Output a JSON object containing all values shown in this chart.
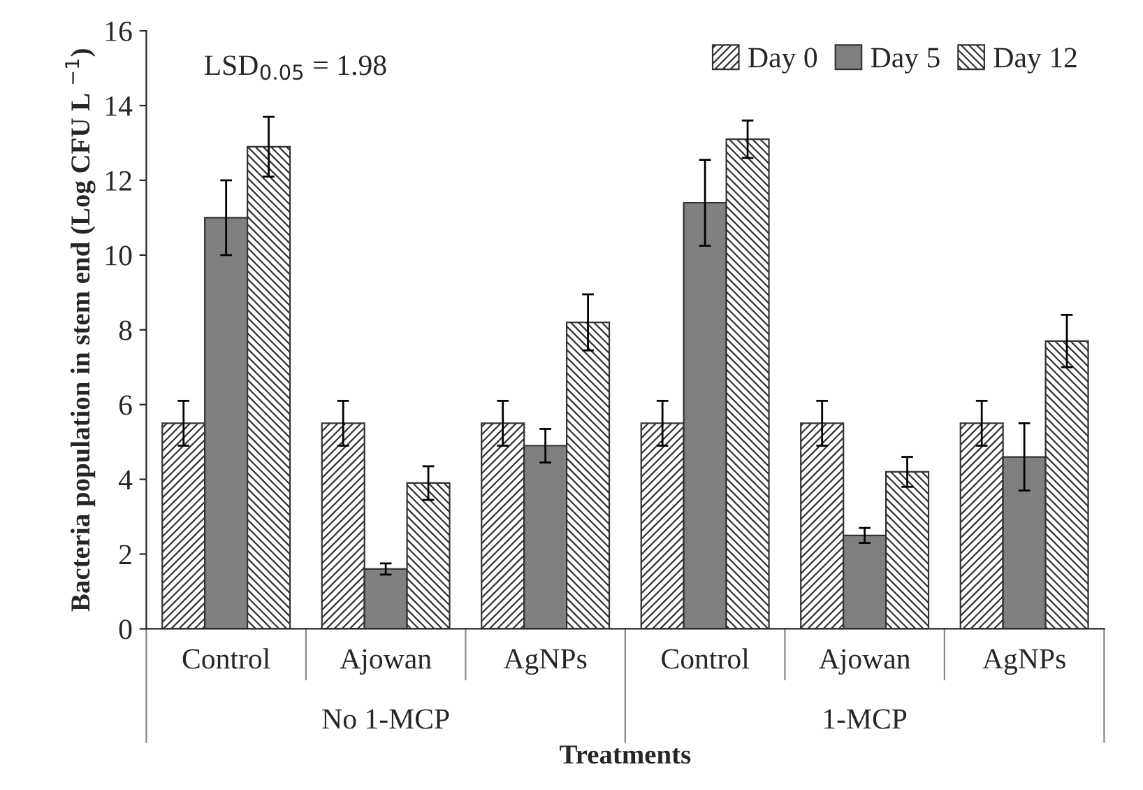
{
  "chart_data": {
    "type": "bar",
    "xlabel": "Treatments",
    "ylabel": "Bacteria population in stem end (Log CFU L $^{−1}$)",
    "categories": [
      "Control",
      "Ajowan",
      "AgNPs",
      "Control",
      "Ajowan",
      "AgNPs"
    ],
    "series": [
      {
        "name": "Day 0",
        "color": "#333333",
        "values": [
          5.5,
          5.5,
          5.5,
          5.5,
          5.5,
          5.5
        ],
        "errors": [
          0.6,
          0.6,
          0.6,
          0.6,
          0.6,
          0.6
        ]
      },
      {
        "name": "Day 5",
        "color": "#808080",
        "values": [
          11.0,
          1.6,
          4.9,
          11.4,
          2.5,
          4.6
        ],
        "errors": [
          1.0,
          0.15,
          0.45,
          1.15,
          0.2,
          0.9
        ]
      },
      {
        "name": "Day 12",
        "color": "#333333",
        "values": [
          12.9,
          3.9,
          8.2,
          13.1,
          4.2,
          7.7
        ],
        "errors": [
          0.8,
          0.45,
          0.75,
          0.5,
          0.4,
          0.7
        ]
      }
    ],
    "ylim": [
      0,
      16
    ],
    "yticks": [
      0,
      2,
      4,
      6,
      8,
      10,
      12,
      14,
      16
    ],
    "annotations": [
      "LSD$_{0.05}$ = 1.98",
      "No 1-MCP",
      "1-MCP"
    ],
    "legend": "top right",
    "grid": false
  }
}
